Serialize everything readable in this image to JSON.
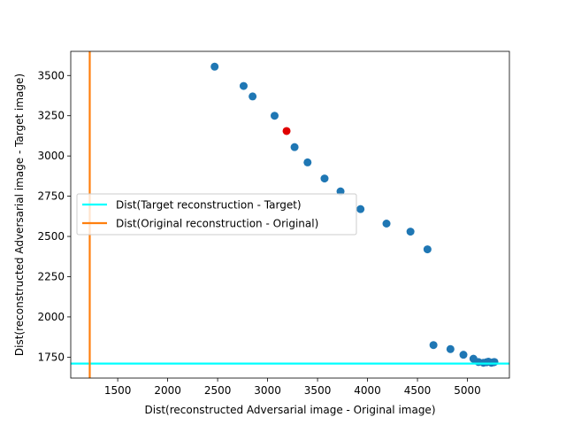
{
  "chart_data": {
    "type": "scatter",
    "title": "",
    "xlabel": "Dist(reconstructed Adversarial image - Original image)",
    "ylabel": "Dist(reconstructed Adversarial image - Target image)",
    "xlim": [
      1030,
      5420
    ],
    "ylim": [
      1620,
      3650
    ],
    "xticks": [
      1500,
      2000,
      2500,
      3000,
      3500,
      4000,
      4500,
      5000
    ],
    "yticks": [
      1750,
      2000,
      2250,
      2500,
      2750,
      3000,
      3250,
      3500
    ],
    "grid": false,
    "legend_position": "center-left",
    "series": [
      {
        "kind": "points",
        "color": "#1f77b4",
        "x": [
          2470,
          2760,
          2850,
          3070,
          3270,
          3400,
          3570,
          3730,
          3930,
          4190,
          4430,
          4600,
          4660,
          4830,
          4960,
          5060,
          5110,
          5160,
          5190,
          5210,
          5240,
          5260,
          5270
        ],
        "y": [
          3555,
          3435,
          3370,
          3250,
          3055,
          2960,
          2860,
          2780,
          2670,
          2580,
          2530,
          2420,
          1825,
          1800,
          1765,
          1740,
          1720,
          1715,
          1718,
          1722,
          1715,
          1718,
          1720
        ]
      },
      {
        "kind": "highlight",
        "color": "#e00000",
        "x": [
          3190
        ],
        "y": [
          3155
        ]
      },
      {
        "kind": "hline",
        "name": "Dist(Target reconstruction - Target)",
        "color": "#00ffff",
        "y": 1710
      },
      {
        "kind": "vline",
        "name": "Dist(Original reconstruction - Original)",
        "color": "#ff7f0e",
        "x": 1220
      }
    ]
  }
}
